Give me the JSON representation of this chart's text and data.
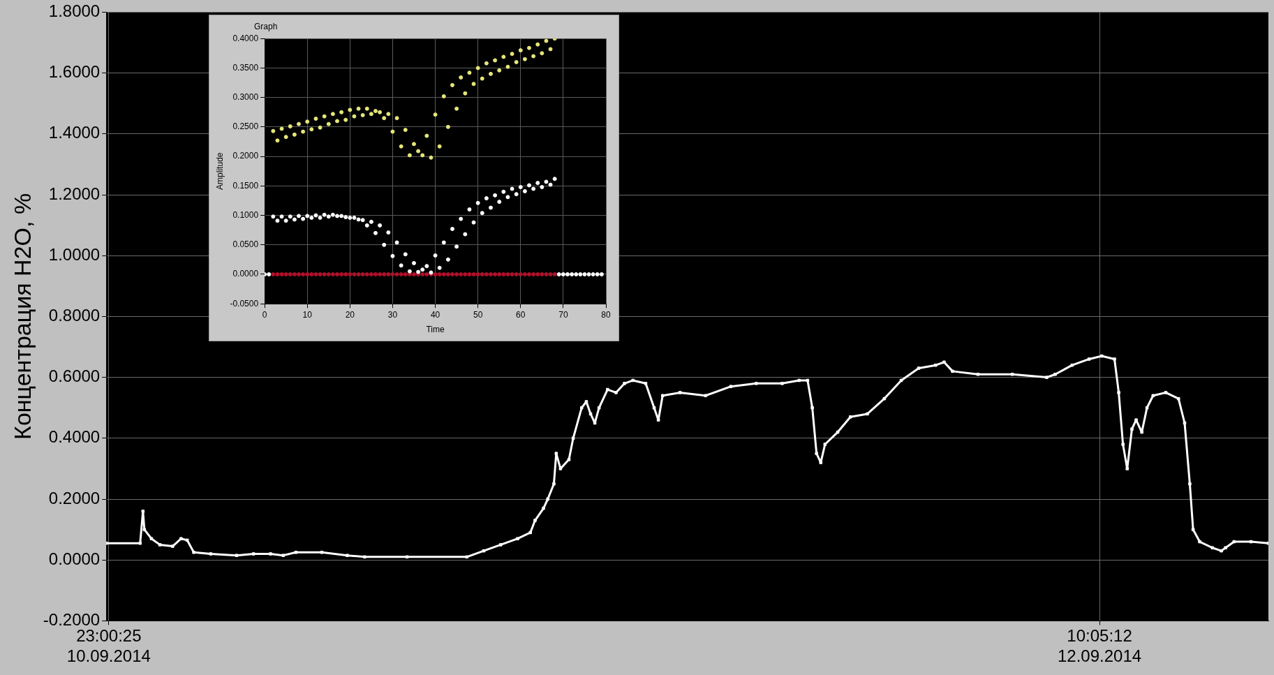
{
  "chart_data": [
    {
      "type": "line",
      "ylabel": "Концентрация H2O, %",
      "x": [
        "2014-09-10T22:55",
        "2014-09-11T00:07",
        "2014-09-11T00:13",
        "2014-09-11T00:16",
        "2014-09-11T00:31",
        "2014-09-11T00:49",
        "2014-09-11T01:16",
        "2014-09-11T01:34",
        "2014-09-11T01:47",
        "2014-09-11T02:01",
        "2014-09-11T02:37",
        "2014-09-11T03:32",
        "2014-09-11T04:08",
        "2014-09-11T04:44",
        "2014-09-11T05:11",
        "2014-09-11T05:38",
        "2014-09-11T06:33",
        "2014-09-11T07:27",
        "2014-09-11T08:04",
        "2014-09-11T09:34",
        "2014-09-11T11:41",
        "2014-09-11T12:17",
        "2014-09-11T12:53",
        "2014-09-11T13:29",
        "2014-09-11T13:56",
        "2014-09-11T14:06",
        "2014-09-11T14:24",
        "2014-09-11T14:33",
        "2014-09-11T14:46",
        "2014-09-11T14:51",
        "2014-09-11T15:00",
        "2014-09-11T15:18",
        "2014-09-11T15:27",
        "2014-09-11T15:45",
        "2014-09-11T15:55",
        "2014-09-11T16:04",
        "2014-09-11T16:13",
        "2014-09-11T16:22",
        "2014-09-11T16:40",
        "2014-09-11T16:58",
        "2014-09-11T17:16",
        "2014-09-11T17:34",
        "2014-09-11T18:01",
        "2014-09-11T18:19",
        "2014-09-11T18:28",
        "2014-09-11T18:37",
        "2014-09-11T19:14",
        "2014-09-11T20:08",
        "2014-09-11T21:02",
        "2014-09-11T21:56",
        "2014-09-11T22:51",
        "2014-09-11T23:27",
        "2014-09-11T23:45",
        "2014-09-11T23:55",
        "2014-09-12T00:04",
        "2014-09-12T00:13",
        "2014-09-12T00:22",
        "2014-09-12T00:49",
        "2014-09-12T01:16",
        "2014-09-12T01:52",
        "2014-09-12T02:28",
        "2014-09-12T03:04",
        "2014-09-12T03:41",
        "2014-09-12T04:17",
        "2014-09-12T04:35",
        "2014-09-12T04:53",
        "2014-09-12T05:47",
        "2014-09-12T07:00",
        "2014-09-12T08:13",
        "2014-09-12T08:31",
        "2014-09-12T09:07",
        "2014-09-12T09:43",
        "2014-09-12T10:10",
        "2014-09-12T10:37",
        "2014-09-12T10:46",
        "2014-09-12T10:55",
        "2014-09-12T11:04",
        "2014-09-12T11:14",
        "2014-09-12T11:23",
        "2014-09-12T11:35",
        "2014-09-12T11:46",
        "2014-09-12T11:59",
        "2014-09-12T12:26",
        "2014-09-12T12:53",
        "2014-09-12T13:06",
        "2014-09-12T13:17",
        "2014-09-12T13:24",
        "2014-09-12T13:38",
        "2014-09-12T14:05",
        "2014-09-12T14:24",
        "2014-09-12T14:33",
        "2014-09-12T14:51",
        "2014-09-12T15:27",
        "2014-09-12T16:04"
      ],
      "series": [
        {
          "color": "#ffffff",
          "values": [
            0.055,
            0.055,
            0.16,
            0.1,
            0.07,
            0.05,
            0.045,
            0.07,
            0.065,
            0.025,
            0.02,
            0.015,
            0.02,
            0.02,
            0.015,
            0.025,
            0.025,
            0.015,
            0.01,
            0.01,
            0.01,
            0.03,
            0.05,
            0.07,
            0.09,
            0.13,
            0.17,
            0.2,
            0.25,
            0.35,
            0.3,
            0.33,
            0.4,
            0.5,
            0.52,
            0.48,
            0.45,
            0.5,
            0.56,
            0.55,
            0.58,
            0.59,
            0.58,
            0.5,
            0.46,
            0.54,
            0.55,
            0.54,
            0.57,
            0.58,
            0.58,
            0.59,
            0.59,
            0.5,
            0.35,
            0.32,
            0.38,
            0.42,
            0.47,
            0.48,
            0.53,
            0.59,
            0.63,
            0.64,
            0.65,
            0.62,
            0.61,
            0.61,
            0.6,
            0.61,
            0.64,
            0.66,
            0.67,
            0.66,
            0.55,
            0.38,
            0.3,
            0.43,
            0.46,
            0.42,
            0.5,
            0.54,
            0.55,
            0.53,
            0.45,
            0.25,
            0.1,
            0.06,
            0.04,
            0.03,
            0.04,
            0.06,
            0.06,
            0.055
          ]
        }
      ],
      "xlim": [
        "2014-09-10T22:55",
        "2014-09-12T16:04"
      ],
      "xticks": [
        {
          "value": "2014-09-10T23:00:25",
          "label": "23:00:25\n10.09.2014"
        },
        {
          "value": "2014-09-12T10:05:12",
          "label": "10:05:12\n12.09.2014"
        }
      ],
      "ylim": [
        -0.2,
        1.8
      ],
      "yticks": [
        {
          "value": -0.2,
          "label": "-0.2000"
        },
        {
          "value": 0,
          "label": "0.0000"
        },
        {
          "value": 0.2,
          "label": "0.2000"
        },
        {
          "value": 0.4,
          "label": "0.4000"
        },
        {
          "value": 0.6,
          "label": "0.6000"
        },
        {
          "value": 0.8,
          "label": "0.8000"
        },
        {
          "value": 1,
          "label": "1.0000"
        },
        {
          "value": 1.2,
          "label": "1.2000"
        },
        {
          "value": 1.4,
          "label": "1.4000"
        },
        {
          "value": 1.6,
          "label": "1.6000"
        },
        {
          "value": 1.8,
          "label": "1.8000"
        }
      ],
      "grid": true,
      "marker": "square",
      "line_style": "solid"
    },
    {
      "type": "scatter",
      "title": "Graph",
      "xlabel": "Time",
      "ylabel": "Amplitude",
      "series": [
        {
          "color": "#e6e67a",
          "x": [
            2,
            3,
            4,
            5,
            6,
            7,
            8,
            9,
            10,
            11,
            12,
            13,
            14,
            15,
            16,
            17,
            18,
            19,
            20,
            21,
            22,
            23,
            24,
            25,
            26,
            27,
            28,
            29,
            30,
            31,
            32,
            33,
            34,
            35,
            36,
            37,
            38,
            39,
            40,
            41,
            42,
            43,
            44,
            45,
            46,
            47,
            48,
            49,
            50,
            51,
            52,
            53,
            54,
            55,
            56,
            57,
            58,
            59,
            60,
            61,
            62,
            63,
            64,
            65,
            66,
            67,
            68
          ],
          "values": [
            0.243,
            0.227,
            0.247,
            0.233,
            0.251,
            0.237,
            0.255,
            0.242,
            0.259,
            0.246,
            0.264,
            0.249,
            0.268,
            0.255,
            0.272,
            0.26,
            0.275,
            0.262,
            0.279,
            0.268,
            0.281,
            0.27,
            0.281,
            0.272,
            0.277,
            0.275,
            0.265,
            0.272,
            0.242,
            0.265,
            0.217,
            0.245,
            0.202,
            0.221,
            0.209,
            0.202,
            0.235,
            0.198,
            0.271,
            0.217,
            0.302,
            0.25,
            0.321,
            0.281,
            0.334,
            0.307,
            0.342,
            0.323,
            0.35,
            0.332,
            0.358,
            0.34,
            0.363,
            0.346,
            0.369,
            0.352,
            0.374,
            0.36,
            0.38,
            0.365,
            0.384,
            0.37,
            0.39,
            0.375,
            0.396,
            0.382,
            0.4
          ]
        },
        {
          "color": "#ffffff",
          "x": [
            0,
            1,
            2,
            3,
            4,
            5,
            6,
            7,
            8,
            9,
            10,
            11,
            12,
            13,
            14,
            15,
            16,
            17,
            18,
            19,
            20,
            21,
            22,
            23,
            24,
            25,
            26,
            27,
            28,
            29,
            30,
            31,
            32,
            33,
            34,
            35,
            36,
            37,
            38,
            39,
            40,
            41,
            42,
            43,
            44,
            45,
            46,
            47,
            48,
            49,
            50,
            51,
            52,
            53,
            54,
            55,
            56,
            57,
            58,
            59,
            60,
            61,
            62,
            63,
            64,
            65,
            66,
            67,
            68,
            69,
            70,
            71,
            72,
            73,
            74,
            75,
            76,
            77,
            78,
            79
          ],
          "values": [
            0,
            0,
            0.098,
            0.091,
            0.098,
            0.091,
            0.098,
            0.093,
            0.099,
            0.094,
            0.099,
            0.096,
            0.1,
            0.096,
            0.101,
            0.098,
            0.101,
            0.099,
            0.099,
            0.097,
            0.096,
            0.096,
            0.093,
            0.092,
            0.083,
            0.089,
            0.07,
            0.083,
            0.05,
            0.071,
            0.031,
            0.054,
            0.015,
            0.034,
            0.005,
            0.019,
            0.004,
            0.008,
            0.014,
            0.003,
            0.032,
            0.011,
            0.054,
            0.025,
            0.077,
            0.047,
            0.094,
            0.068,
            0.11,
            0.088,
            0.121,
            0.104,
            0.129,
            0.113,
            0.134,
            0.123,
            0.14,
            0.131,
            0.145,
            0.136,
            0.148,
            0.141,
            0.151,
            0.145,
            0.155,
            0.148,
            0.157,
            0.152,
            0.162,
            0,
            0,
            0,
            0,
            0,
            0,
            0,
            0,
            0,
            0,
            0
          ]
        },
        {
          "color": "#b0102a",
          "x": [
            2,
            3,
            4,
            5,
            6,
            7,
            8,
            9,
            10,
            11,
            12,
            13,
            14,
            15,
            16,
            17,
            18,
            19,
            20,
            21,
            22,
            23,
            24,
            25,
            26,
            27,
            28,
            29,
            30,
            31,
            32,
            33,
            34,
            35,
            36,
            37,
            38,
            39,
            40,
            41,
            42,
            43,
            44,
            45,
            46,
            47,
            48,
            49,
            50,
            51,
            52,
            53,
            54,
            55,
            56,
            57,
            58,
            59,
            60,
            61,
            62,
            63,
            64,
            65,
            66,
            67,
            68
          ],
          "values": [
            0,
            0,
            0,
            0,
            0,
            0,
            0,
            0,
            0,
            0,
            0,
            0,
            0,
            0,
            0,
            0,
            0,
            0,
            0,
            0,
            0,
            0,
            0,
            0,
            0,
            0,
            0,
            0,
            0,
            0,
            0,
            0,
            0,
            0,
            0,
            0,
            0,
            0,
            0,
            0,
            0,
            0,
            0,
            0,
            0,
            0,
            0,
            0,
            0,
            0,
            0,
            0,
            0,
            0,
            0,
            0,
            0,
            0,
            0,
            0,
            0,
            0,
            0,
            0,
            0,
            0,
            0
          ]
        }
      ],
      "xlim": [
        0,
        80
      ],
      "xticks": [
        0,
        10,
        20,
        30,
        40,
        50,
        60,
        70,
        80
      ],
      "ylim": [
        -0.05,
        0.4
      ],
      "yticks": [
        {
          "value": -0.05,
          "label": "-0.0500"
        },
        {
          "value": 0,
          "label": "0.0000"
        },
        {
          "value": 0.05,
          "label": "0.0500"
        },
        {
          "value": 0.1,
          "label": "0.1000"
        },
        {
          "value": 0.15,
          "label": "0.1500"
        },
        {
          "value": 0.2,
          "label": "0.2000"
        },
        {
          "value": 0.25,
          "label": "0.2500"
        },
        {
          "value": 0.3,
          "label": "0.3000"
        },
        {
          "value": 0.35,
          "label": "0.3500"
        },
        {
          "value": 0.4,
          "label": "0.4000"
        }
      ],
      "grid": true,
      "marker": "circle"
    }
  ]
}
